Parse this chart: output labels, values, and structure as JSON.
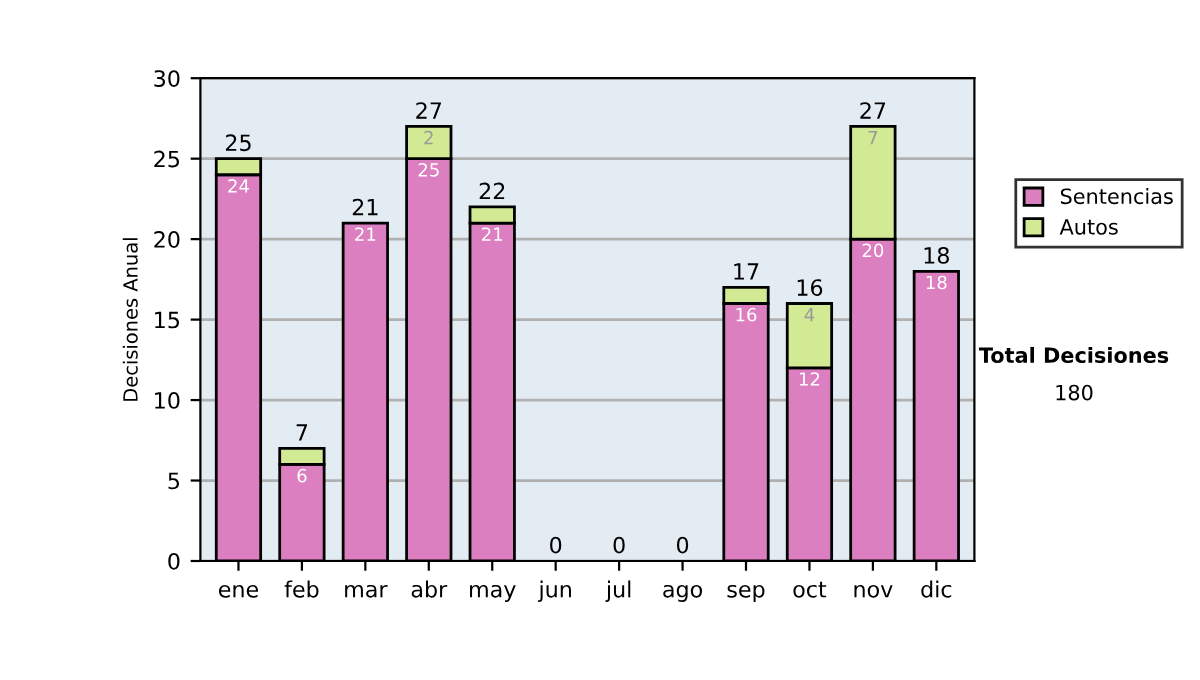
{
  "chart_data": {
    "type": "bar",
    "stacked": true,
    "ylabel": "Decisiones Anual",
    "categories": [
      "ene",
      "feb",
      "mar",
      "abr",
      "may",
      "jun",
      "jul",
      "ago",
      "sep",
      "oct",
      "nov",
      "dic"
    ],
    "series": [
      {
        "name": "Sentencias",
        "color": "#dc7fc0",
        "values": [
          24,
          6,
          21,
          25,
          21,
          0,
          0,
          0,
          16,
          12,
          20,
          18
        ],
        "value_labels": [
          "24",
          "6",
          "21",
          "25",
          "21",
          null,
          null,
          null,
          "16",
          "12",
          "20",
          "18"
        ]
      },
      {
        "name": "Autos",
        "color": "#d3ea94",
        "values": [
          1,
          1,
          0,
          2,
          1,
          0,
          0,
          0,
          1,
          4,
          7,
          0
        ],
        "value_labels": [
          null,
          null,
          null,
          "2",
          null,
          null,
          null,
          null,
          null,
          "4",
          "7",
          null
        ]
      }
    ],
    "totals": [
      "25",
      "7",
      "21",
      "27",
      "22",
      "0",
      "0",
      "0",
      "17",
      "16",
      "27",
      "18"
    ],
    "ylim": [
      0,
      30
    ],
    "yticks": [
      0,
      5,
      10,
      15,
      20,
      25,
      30
    ],
    "grid": "y",
    "legend": "right",
    "annotations": [
      "Total Decisiones",
      "180"
    ]
  }
}
